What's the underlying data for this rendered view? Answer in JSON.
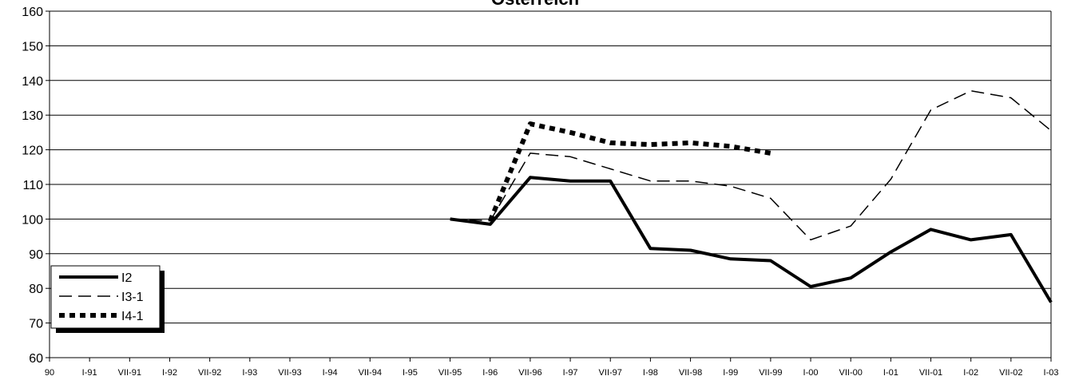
{
  "chart_data": {
    "type": "line",
    "title": "Österreich",
    "xlabel": "",
    "ylabel": "",
    "ylim": [
      60,
      160
    ],
    "yticks": [
      60,
      70,
      80,
      90,
      100,
      110,
      120,
      130,
      140,
      150,
      160
    ],
    "categories": [
      "90",
      "I-91",
      "VII-91",
      "I-92",
      "VII-92",
      "I-93",
      "VII-93",
      "I-94",
      "VII-94",
      "I-95",
      "VII-95",
      "I-96",
      "VII-96",
      "I-97",
      "VII-97",
      "I-98",
      "VII-98",
      "I-99",
      "VII-99",
      "I-00",
      "VII-00",
      "I-01",
      "VII-01",
      "I-02",
      "VII-02",
      "I-03"
    ],
    "grid": "horizontal",
    "legend_position": "bottom-left",
    "series": [
      {
        "name": "I2",
        "style": "solid-thick",
        "color": "#000000",
        "values": [
          null,
          null,
          null,
          null,
          null,
          null,
          null,
          null,
          null,
          null,
          100,
          98.5,
          112,
          111,
          111,
          91.5,
          91,
          88.5,
          88,
          80.5,
          83,
          90.5,
          97,
          94,
          95.5,
          76
        ]
      },
      {
        "name": "I3-1",
        "style": "dashed-thin",
        "color": "#000000",
        "values": [
          null,
          null,
          null,
          null,
          null,
          null,
          null,
          null,
          null,
          null,
          100,
          99.5,
          119,
          118,
          114.5,
          111,
          111,
          109.5,
          106,
          94,
          98,
          111.5,
          131.5,
          137,
          135,
          125.5
        ]
      },
      {
        "name": "I4-1",
        "style": "dotted-thick",
        "color": "#000000",
        "values": [
          null,
          null,
          null,
          null,
          null,
          null,
          null,
          null,
          null,
          null,
          null,
          99.5,
          127.5,
          125,
          122,
          121.5,
          122,
          121,
          119,
          null,
          null,
          null,
          null,
          null,
          null,
          null
        ]
      }
    ]
  }
}
